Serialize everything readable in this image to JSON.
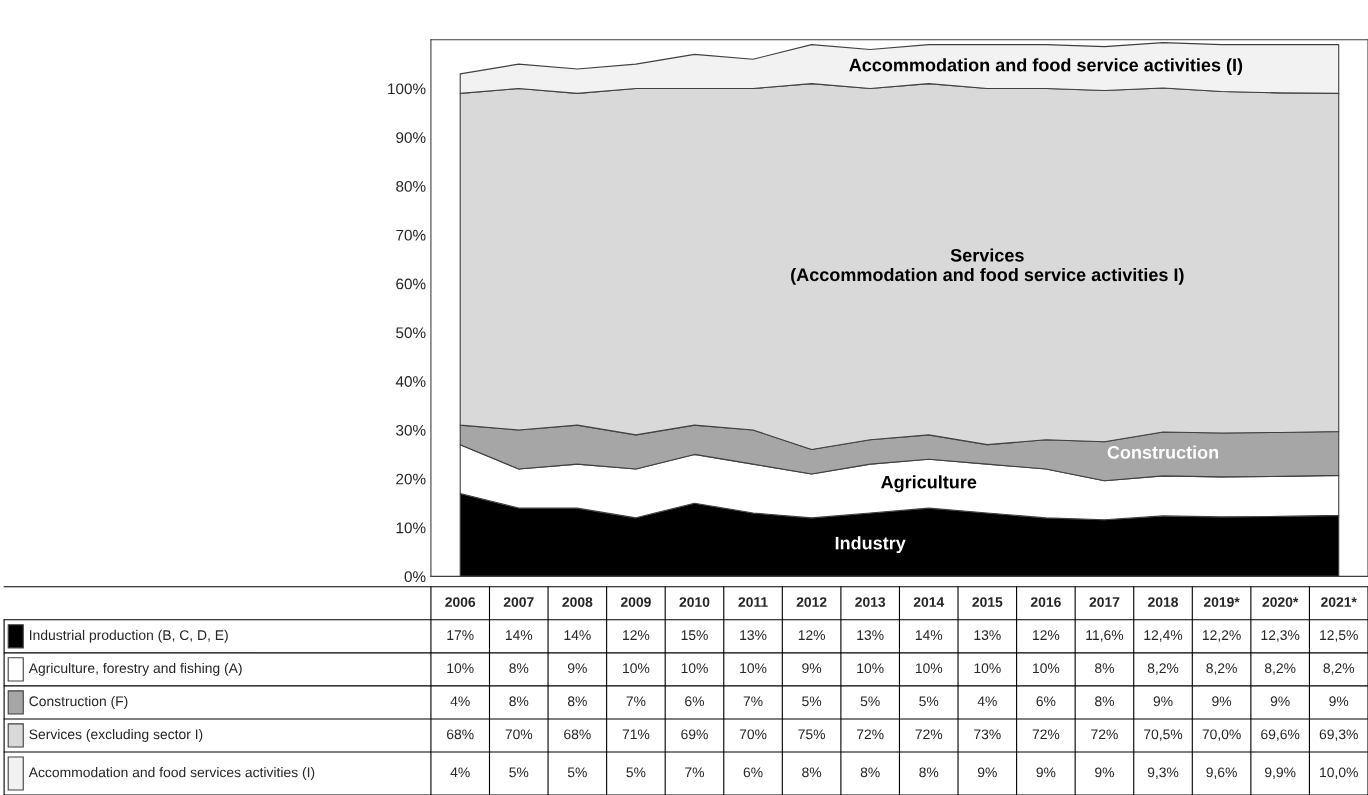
{
  "chart_data": {
    "type": "area",
    "stacked": true,
    "categories": [
      "2006",
      "2007",
      "2008",
      "2009",
      "2010",
      "2011",
      "2012",
      "2013",
      "2014",
      "2015",
      "2016",
      "2017",
      "2018",
      "2019*",
      "2020*",
      "2021*"
    ],
    "series": [
      {
        "name": "Industrial production (B, C, D, E)",
        "color": "#000000",
        "values": [
          17,
          14,
          14,
          12,
          15,
          13,
          12,
          13,
          14,
          13,
          12,
          11.6,
          12.4,
          12.2,
          12.3,
          12.5
        ],
        "value_labels": [
          "17%",
          "14%",
          "14%",
          "12%",
          "15%",
          "13%",
          "12%",
          "13%",
          "14%",
          "13%",
          "12%",
          "11,6%",
          "12,4%",
          "12,2%",
          "12,3%",
          "12,5%"
        ]
      },
      {
        "name": "Agriculture, forestry and fishing (A)",
        "color": "#ffffff",
        "values": [
          10,
          8,
          9,
          10,
          10,
          10,
          9,
          10,
          10,
          10,
          10,
          8,
          8.2,
          8.2,
          8.2,
          8.2
        ],
        "value_labels": [
          "10%",
          "8%",
          "9%",
          "10%",
          "10%",
          "10%",
          "9%",
          "10%",
          "10%",
          "10%",
          "10%",
          "8%",
          "8,2%",
          "8,2%",
          "8,2%",
          "8,2%"
        ]
      },
      {
        "name": "Construction (F)",
        "color": "#a6a6a6",
        "values": [
          4,
          8,
          8,
          7,
          6,
          7,
          5,
          5,
          5,
          4,
          6,
          8,
          9,
          9,
          9,
          9
        ],
        "value_labels": [
          "4%",
          "8%",
          "8%",
          "7%",
          "6%",
          "7%",
          "5%",
          "5%",
          "5%",
          "4%",
          "6%",
          "8%",
          "9%",
          "9%",
          "9%",
          "9%"
        ]
      },
      {
        "name": "Services (excluding sector I)",
        "color": "#d9d9d9",
        "values": [
          68,
          70,
          68,
          71,
          69,
          70,
          75,
          72,
          72,
          73,
          72,
          72,
          70.5,
          70.0,
          69.6,
          69.3
        ],
        "value_labels": [
          "68%",
          "70%",
          "68%",
          "71%",
          "69%",
          "70%",
          "75%",
          "72%",
          "72%",
          "73%",
          "72%",
          "72%",
          "70,5%",
          "70,0%",
          "69,6%",
          "69,3%"
        ]
      },
      {
        "name": "Accommodation and food services activities (I)",
        "color": "#f2f2f2",
        "values": [
          4,
          5,
          5,
          5,
          7,
          6,
          8,
          8,
          8,
          9,
          9,
          9,
          9.3,
          9.6,
          9.9,
          10.0
        ],
        "value_labels": [
          "4%",
          "5%",
          "5%",
          "5%",
          "7%",
          "6%",
          "8%",
          "8%",
          "8%",
          "9%",
          "9%",
          "9%",
          "9,3%",
          "9,6%",
          "9,9%",
          "10,0%"
        ]
      }
    ],
    "ylim": [
      0,
      110
    ],
    "yticks": [
      {
        "value": 0,
        "label": "0%"
      },
      {
        "value": 10,
        "label": "10%"
      },
      {
        "value": 20,
        "label": "20%"
      },
      {
        "value": 30,
        "label": "30%"
      },
      {
        "value": 40,
        "label": "40%"
      },
      {
        "value": 50,
        "label": "50%"
      },
      {
        "value": 60,
        "label": "60%"
      },
      {
        "value": 70,
        "label": "70%"
      },
      {
        "value": 80,
        "label": "80%"
      },
      {
        "value": 90,
        "label": "90%"
      },
      {
        "value": 100,
        "label": "100%"
      }
    ],
    "tick_labels": "y",
    "grid": false,
    "legend": "bottom left",
    "annotations": [
      "Industry",
      "Agriculture",
      "Construction",
      "Services\n(Accommodation and food service activities I)",
      "Accommodation and food service activities (I)"
    ]
  }
}
